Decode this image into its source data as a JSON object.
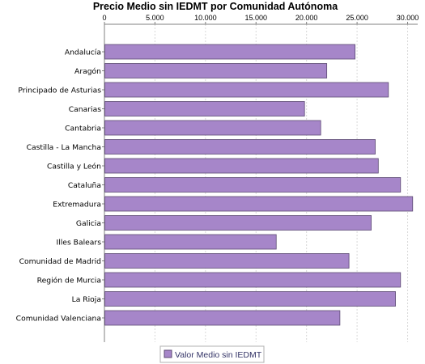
{
  "chart_data": {
    "type": "bar",
    "orientation": "horizontal",
    "title": "Precio Medio sin IEDMT por Comunidad Autónoma",
    "xlabel": "",
    "ylabel": "",
    "xlim": [
      0,
      31000
    ],
    "ticks": [
      0,
      5000,
      10000,
      15000,
      20000,
      25000,
      30000
    ],
    "tick_labels": [
      "0",
      "5.000",
      "10.000",
      "15.000",
      "20.000",
      "25.000",
      "30.000"
    ],
    "categories": [
      "Andalucía",
      "Aragón",
      "Principado de Asturias",
      "Canarias",
      "Cantabria",
      "Castilla - La Mancha",
      "Castilla y León",
      "Cataluña",
      "Extremadura",
      "Galicia",
      "Illes Balears",
      "Comunidad de Madrid",
      "Región de Murcia",
      "La Rioja",
      "Comunidad Valenciana"
    ],
    "series": [
      {
        "name": "Valor Medio sin IEDMT",
        "values": [
          24800,
          22000,
          28100,
          19800,
          21400,
          26800,
          27100,
          29300,
          30500,
          26400,
          17000,
          24200,
          29300,
          28800,
          23300
        ]
      }
    ],
    "grid": true,
    "legend_position": "bottom-center",
    "colors": {
      "bar_fill": "#a686c9",
      "bar_stroke": "#5c4a73",
      "grid": "#d8d8d8",
      "axis": "#808080",
      "legend_text": "#333366"
    }
  }
}
